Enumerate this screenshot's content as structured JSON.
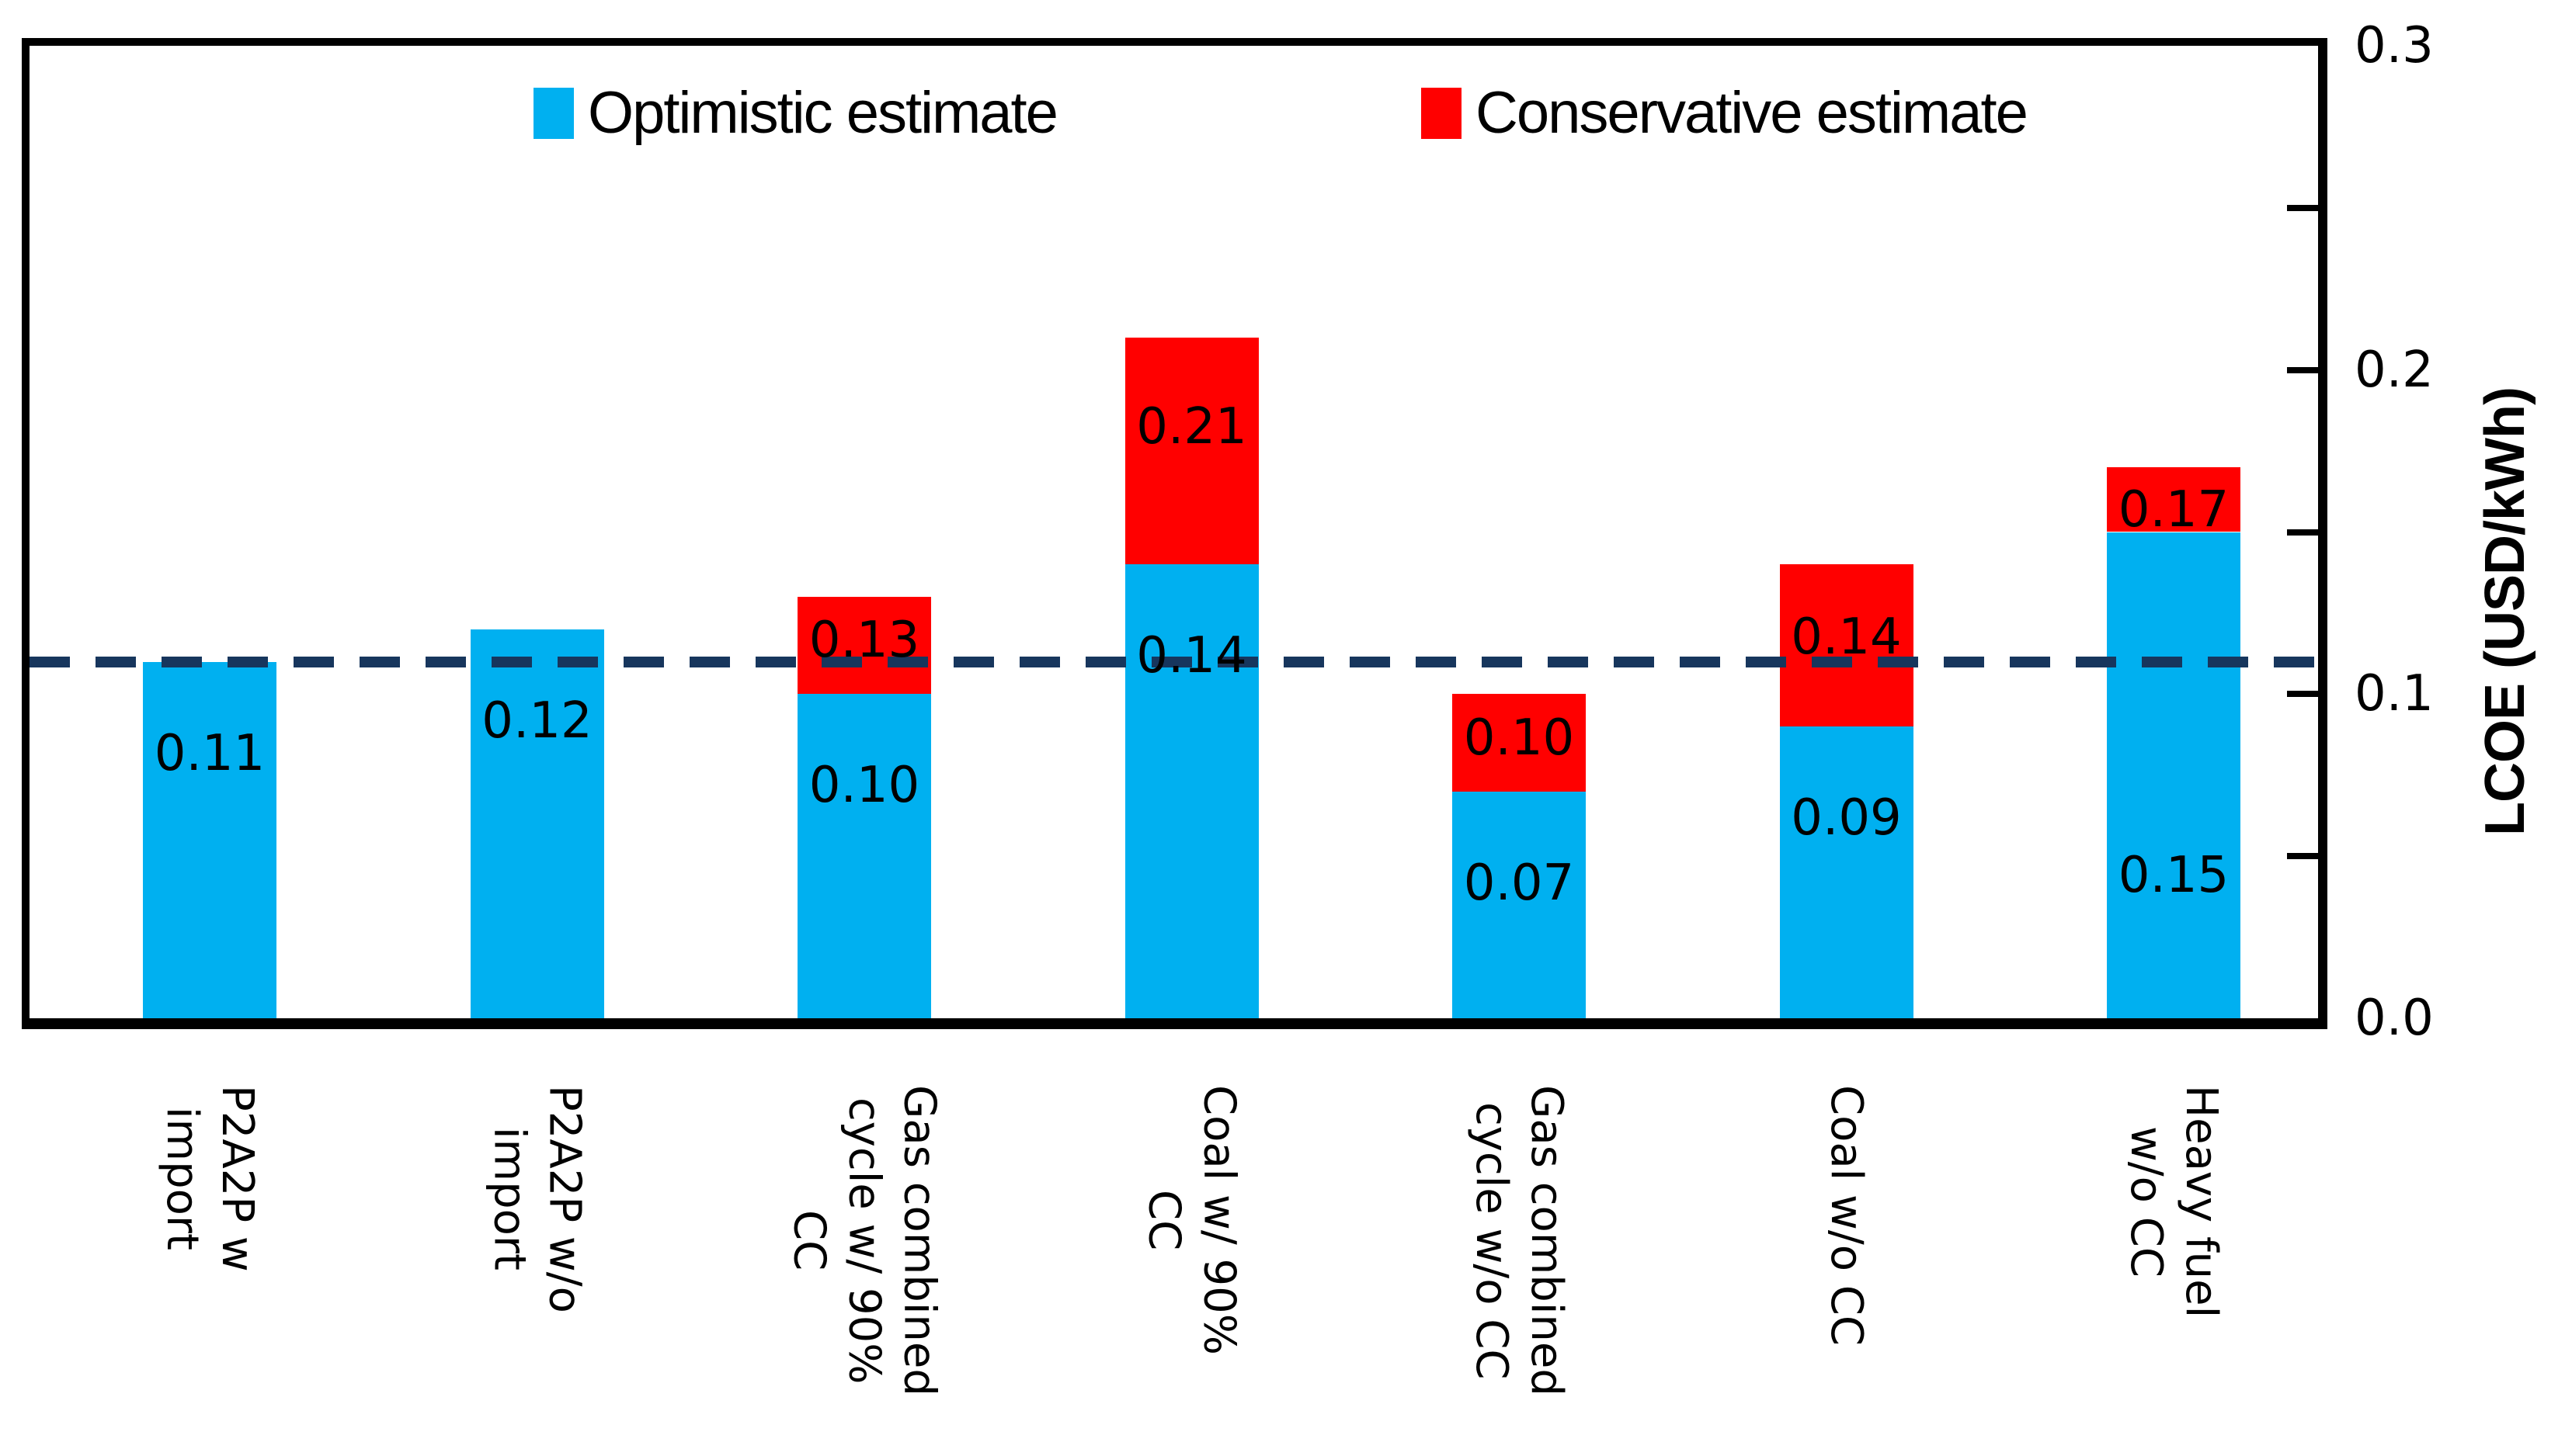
{
  "legend": {
    "items": [
      {
        "label": "Optimistic estimate",
        "color": "#00B0F0"
      },
      {
        "label": "Conservative estimate",
        "color": "#FF0000"
      }
    ]
  },
  "y_axis": {
    "title": "LCOE (USD/kWh)",
    "tick_labels": [
      {
        "label": "0.3",
        "value": 0.3
      },
      {
        "label": "0.2",
        "value": 0.2
      },
      {
        "label": "0.1",
        "value": 0.1
      },
      {
        "label": "0.0",
        "value": 0.0
      }
    ],
    "minor_tick_values": [
      0.05,
      0.1,
      0.15,
      0.2,
      0.25
    ],
    "min": 0.0,
    "max": 0.3
  },
  "reference_line": {
    "value": 0.11,
    "color": "#17365D",
    "style": "dashed"
  },
  "chart_data": {
    "type": "bar",
    "stacked": true,
    "grid": false,
    "legend_position": "top-inside",
    "ylabel": "LCOE (USD/kWh)",
    "ylim": [
      0.0,
      0.3
    ],
    "categories": [
      "P2A2P w\nimport",
      "P2A2P w/o\nimport",
      "Gas combined\ncycle w/ 90%\nCC",
      "Coal w/ 90%\nCC",
      "Gas combined\ncycle w/o CC",
      "Coal w/o CC",
      "Heavy fuel\nw/o CC"
    ],
    "series": [
      {
        "name": "Optimistic estimate",
        "color": "#00B0F0",
        "values": [
          0.11,
          0.12,
          0.1,
          0.14,
          0.07,
          0.09,
          0.15
        ],
        "labels": [
          "0.11",
          "0.12",
          "0.10",
          "0.14",
          "0.07",
          "0.09",
          "0.15"
        ]
      },
      {
        "name": "Conservative estimate",
        "color": "#FF0000",
        "totals": [
          null,
          null,
          0.13,
          0.21,
          0.1,
          0.14,
          0.17
        ],
        "labels": [
          null,
          null,
          "0.13",
          "0.21",
          "0.10",
          "0.14",
          "0.17"
        ]
      }
    ]
  }
}
